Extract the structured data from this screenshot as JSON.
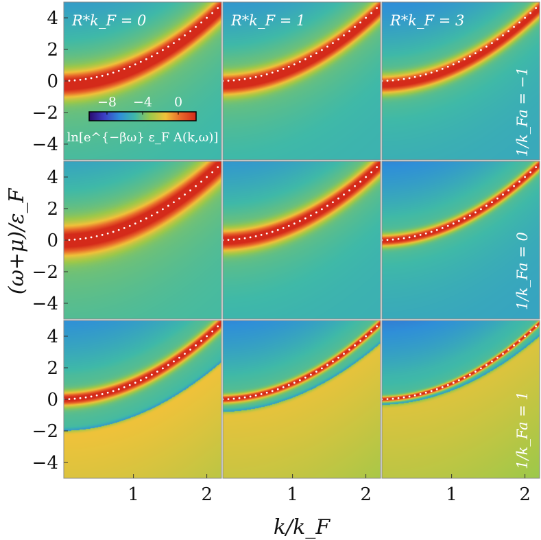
{
  "chart_data": {
    "type": "heatmap",
    "xlabel": "k/k_F",
    "ylabel": "(ω+μ)/ε_F",
    "x_ticks": [
      "1",
      "2"
    ],
    "y_ticks": [
      "4",
      "2",
      "0",
      "−2",
      "−4"
    ],
    "xlim": [
      0.05,
      2.2
    ],
    "ylim": [
      -5,
      5
    ],
    "column_labels": [
      "R*k_F = 0",
      "R*k_F = 1",
      "R*k_F = 3"
    ],
    "row_labels": [
      "1/k_Fa = −1",
      "1/k_Fa = 0",
      "1/k_Fa = 1"
    ],
    "colorbar": {
      "label": "ln[e^{−βω} ε_F A(k,ω)]",
      "ticks": [
        "−8",
        "−4",
        "0"
      ],
      "tick_values": [
        -8,
        -4,
        0
      ],
      "range": [
        -10,
        2
      ],
      "colors": [
        "#2a0a6e",
        "#3b3fc4",
        "#2f8fd8",
        "#3fb9a8",
        "#9cc84a",
        "#f0c23a",
        "#e8672a",
        "#d42a1a"
      ]
    },
    "free_dispersion": "k^2 (white dotted curve)",
    "panels": [
      {
        "row": 0,
        "col": 0,
        "peak_width": 0.55,
        "background": -5.0
      },
      {
        "row": 0,
        "col": 1,
        "peak_width": 0.45,
        "background": -5.2
      },
      {
        "row": 0,
        "col": 2,
        "peak_width": 0.38,
        "background": -5.6
      },
      {
        "row": 1,
        "col": 0,
        "peak_width": 0.65,
        "background": -4.8
      },
      {
        "row": 1,
        "col": 1,
        "peak_width": 0.45,
        "background": -5.3
      },
      {
        "row": 1,
        "col": 2,
        "peak_width": 0.25,
        "background": -5.8
      },
      {
        "row": 2,
        "col": 0,
        "peak_width": 0.3,
        "background": -5.6,
        "lower_branch": true
      },
      {
        "row": 2,
        "col": 1,
        "peak_width": 0.18,
        "background": -5.8,
        "lower_branch": true
      },
      {
        "row": 2,
        "col": 2,
        "peak_width": 0.12,
        "background": -6.0,
        "lower_branch": true
      }
    ]
  }
}
